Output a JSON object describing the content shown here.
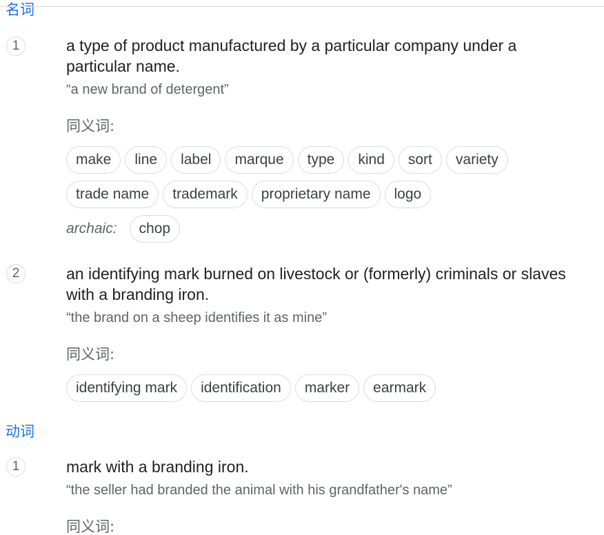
{
  "noun": {
    "label": "名词",
    "senses": [
      {
        "num": "1",
        "definition": "a type of product manufactured by a particular company under a particular name.",
        "example": "“a new brand of detergent”",
        "synonyms_label": "同义词:",
        "synonyms_row1": [
          "make",
          "line",
          "label",
          "marque",
          "type",
          "kind",
          "sort",
          "variety"
        ],
        "synonyms_row2": [
          "trade name",
          "trademark",
          "proprietary name",
          "logo"
        ],
        "archaic_label": "archaic:",
        "archaic_synonyms": [
          "chop"
        ]
      },
      {
        "num": "2",
        "definition": "an identifying mark burned on livestock or (formerly) criminals or slaves with a branding iron.",
        "example": "“the brand on a sheep identifies it as mine”",
        "synonyms_label": "同义词:",
        "synonyms_row1": [
          "identifying mark",
          "identification",
          "marker",
          "earmark"
        ]
      }
    ]
  },
  "verb": {
    "label": "动词",
    "senses": [
      {
        "num": "1",
        "definition": "mark with a branding iron.",
        "example": "“the seller had branded the animal with his grandfather's name”",
        "synonyms_label": "同义词:"
      }
    ]
  }
}
